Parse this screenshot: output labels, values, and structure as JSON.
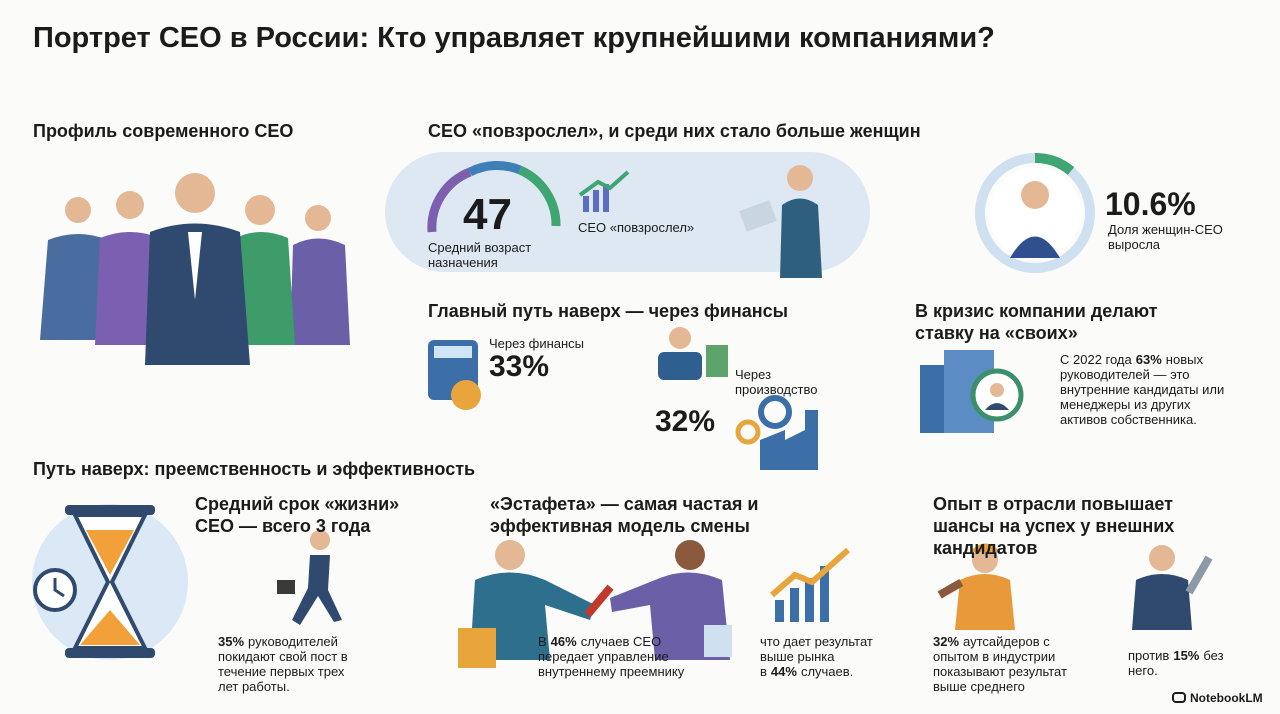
{
  "title": "Портрет CEO в России: Кто управляет крупнейшими компаниями?",
  "profile": {
    "heading": "Профиль современного CEO"
  },
  "age": {
    "heading": "CEO «повзрослел», и среди них стало больше женщин",
    "value": "47",
    "caption": "Средний возраст назначения",
    "trend_label": "CEO «повзрослел»"
  },
  "women": {
    "value": "10.6%",
    "caption": "Доля женщин-CEO выросла"
  },
  "career_path": {
    "heading": "Главный путь наверх — через финансы",
    "finance": {
      "label": "Через финансы",
      "value": "33%"
    },
    "production": {
      "label": "Через производство",
      "value": "32%"
    }
  },
  "crisis": {
    "heading": "В кризис компании делают ставку на «своих»",
    "text_before": "С 2022 года",
    "highlight": "63%",
    "text_after": "новых руководителей — это внутренние кандидаты или менеджеры из других активов собственника."
  },
  "succession": {
    "heading": "Путь наверх: преемственность и эффективность"
  },
  "lifespan": {
    "heading": "Средний срок «жизни» CEO — всего 3 года",
    "highlight": "35%",
    "text": "руководителей покидают свой пост в течение первых трех лет работы."
  },
  "relay": {
    "heading": "«Эстафета» — самая частая и эффективная модель смены",
    "text_before": "В",
    "highlight": "46%",
    "text_after": "случаев CEO передает управление внутреннему преемнику",
    "result_before": "что дает результат выше рынка в",
    "result_highlight": "44%",
    "result_after": "случаев."
  },
  "industry": {
    "heading": "Опыт в отрасли повышает шансы на успех у внешних кандидатов",
    "highlight": "32%",
    "text": "аутсайдеров с опытом в индустрии показывают результат выше среднего",
    "compare_before": "против",
    "compare_highlight": "15%",
    "compare_after": "без него."
  },
  "footer": {
    "brand": "NotebookLM"
  }
}
